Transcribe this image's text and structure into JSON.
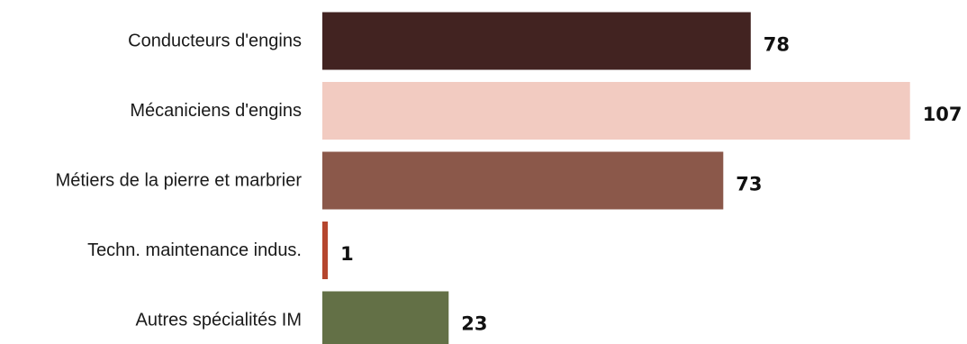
{
  "chart_data": {
    "type": "bar",
    "orientation": "horizontal",
    "title": "",
    "xlabel": "",
    "ylabel": "",
    "categories": [
      "Conducteurs d'engins",
      "Mécaniciens d'engins",
      "Métiers de la pierre et marbrier",
      "Techn. maintenance indus.",
      "Autres spécialités IM"
    ],
    "values": [
      78,
      107,
      73,
      1,
      23
    ],
    "data_labels": [
      "78",
      "107",
      "73",
      "1",
      "23"
    ],
    "colors": [
      "#422321",
      "#f2cbc1",
      "#8b584a",
      "#b5462e",
      "#637046"
    ],
    "xlim": [
      0,
      107
    ],
    "grid": false,
    "legend": "none"
  }
}
